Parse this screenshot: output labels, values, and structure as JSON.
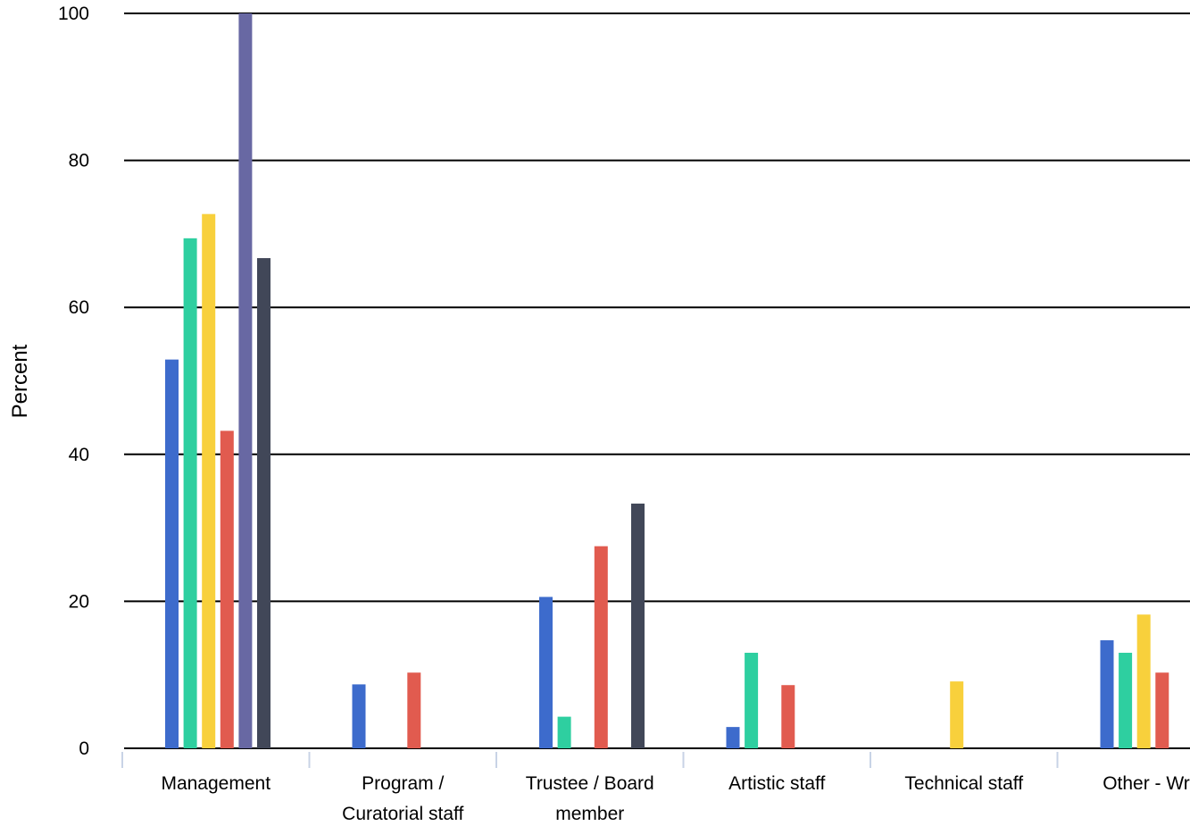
{
  "chart_data": {
    "type": "bar",
    "title": "",
    "xlabel": "",
    "ylabel": "Percent",
    "ylim": [
      0,
      100
    ],
    "yticks": [
      0,
      20,
      40,
      60,
      80,
      100
    ],
    "grid": true,
    "legend": "none",
    "categories": [
      [
        "Management"
      ],
      [
        "Program /",
        "Curatorial staff"
      ],
      [
        "Trustee / Board",
        "member"
      ],
      [
        "Artistic staff"
      ],
      [
        "Technical staff"
      ],
      [
        "Other - Writ"
      ]
    ],
    "series": [
      {
        "color": "#3d6bcc",
        "values": [
          52.9,
          8.7,
          20.6,
          2.9,
          0,
          14.7
        ]
      },
      {
        "color": "#2ecfa0",
        "values": [
          69.4,
          0,
          4.3,
          13.0,
          0,
          13.0
        ]
      },
      {
        "color": "#f8d03c",
        "values": [
          72.7,
          0,
          0,
          0,
          9.1,
          18.2
        ]
      },
      {
        "color": "#e15b4f",
        "values": [
          43.2,
          10.3,
          27.5,
          8.6,
          0,
          10.3
        ]
      },
      {
        "color": "#6868a3",
        "values": [
          100,
          0,
          0,
          0,
          0,
          0
        ]
      },
      {
        "color": "#414758",
        "values": [
          66.7,
          0,
          33.3,
          0,
          0,
          0
        ]
      }
    ]
  }
}
